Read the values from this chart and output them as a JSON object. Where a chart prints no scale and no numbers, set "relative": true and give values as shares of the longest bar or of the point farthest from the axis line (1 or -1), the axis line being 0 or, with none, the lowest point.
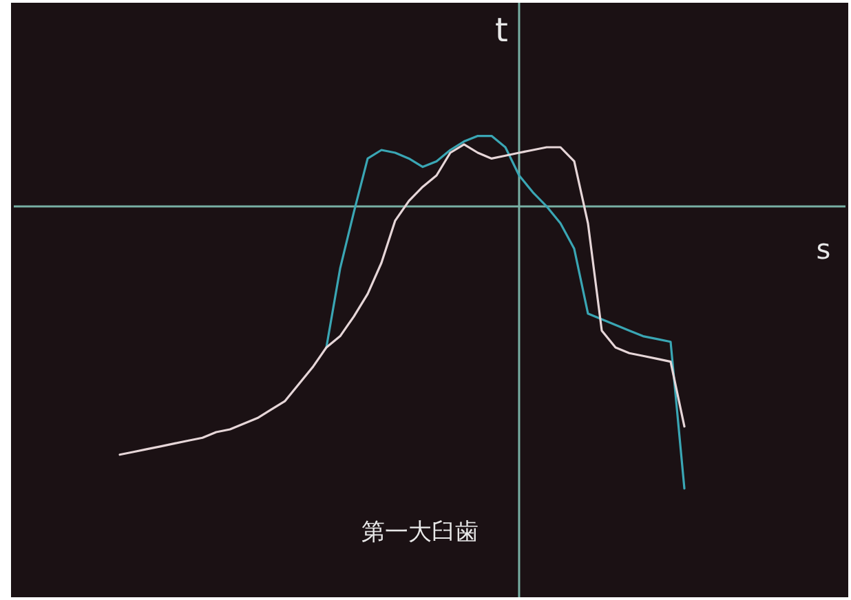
{
  "chart_data": {
    "type": "line",
    "relative": true,
    "xlabel": "s",
    "ylabel": "t",
    "annotations": [
      "第一大臼歯"
    ],
    "ref_lines": [
      {
        "axis": "y",
        "value": 0,
        "color": "#78b0a4"
      }
    ],
    "categories": [
      null,
      null,
      null,
      null,
      null,
      null,
      null,
      null,
      null,
      null,
      null,
      null,
      null,
      null,
      null,
      null,
      null,
      null,
      null,
      null,
      null,
      null,
      null,
      null,
      null,
      null,
      null,
      null,
      null,
      null,
      null,
      null,
      null,
      null,
      null,
      null,
      null,
      null,
      null,
      null,
      null,
      null
    ],
    "series": [
      {
        "color": "#3aa6b4",
        "values": [
          null,
          null,
          null,
          null,
          null,
          null,
          null,
          null,
          null,
          null,
          null,
          null,
          null,
          null,
          null,
          -0.5,
          -0.22,
          -0.02,
          0.17,
          0.2,
          0.19,
          0.17,
          0.14,
          0.16,
          0.2,
          0.23,
          0.25,
          0.25,
          0.21,
          0.11,
          0.05,
          0,
          -0.06,
          -0.15,
          -0.38,
          -0.4,
          -0.42,
          -0.44,
          -0.46,
          -0.47,
          -0.48,
          -1.0
        ]
      },
      {
        "color": "#e6d6d8",
        "values": [
          -0.88,
          -0.87,
          -0.86,
          -0.85,
          -0.84,
          -0.83,
          -0.82,
          -0.8,
          -0.79,
          -0.77,
          -0.75,
          -0.72,
          -0.69,
          -0.63,
          -0.57,
          -0.5,
          -0.46,
          -0.39,
          -0.31,
          -0.2,
          -0.05,
          0.02,
          0.07,
          0.11,
          0.19,
          0.22,
          0.19,
          0.17,
          0.18,
          0.19,
          0.2,
          0.21,
          0.21,
          0.16,
          -0.06,
          -0.44,
          -0.5,
          -0.52,
          -0.53,
          -0.54,
          -0.55,
          -0.78
        ]
      }
    ]
  }
}
